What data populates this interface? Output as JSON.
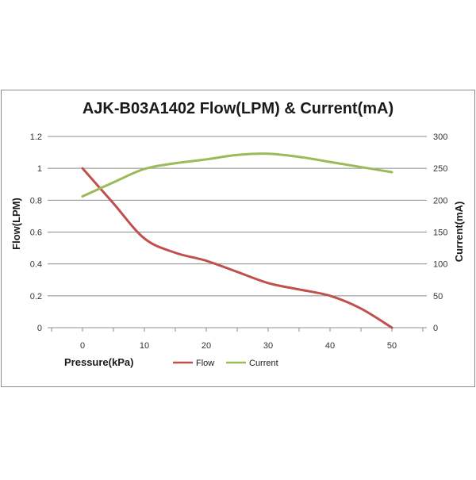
{
  "chart_data": {
    "type": "line",
    "title": "AJK-B03A1402 Flow(LPM) & Current(mA)",
    "xlabel": "Pressure(kPa)",
    "ylabel": "Flow(LPM)",
    "y2label": "Current(mA)",
    "x": [
      0,
      10,
      20,
      30,
      40,
      50
    ],
    "xlim": [
      -5,
      55
    ],
    "xticks": [
      "0",
      "10",
      "20",
      "30",
      "40",
      "50"
    ],
    "ylim": [
      0,
      1.2
    ],
    "yticks": [
      "0",
      "0.2",
      "0.4",
      "0.6",
      "0.8",
      "1",
      "1.2"
    ],
    "y2lim": [
      0,
      300
    ],
    "y2ticks": [
      "0",
      "50",
      "100",
      "150",
      "200",
      "250",
      "300"
    ],
    "grid": true,
    "legend": "bottom",
    "series": [
      {
        "name": "Flow",
        "axis": "left",
        "color": "#c0504d",
        "x": [
          0,
          5,
          10,
          15,
          20,
          25,
          30,
          35,
          40,
          45,
          50
        ],
        "values": [
          1.0,
          0.78,
          0.56,
          0.47,
          0.42,
          0.35,
          0.28,
          0.24,
          0.2,
          0.12,
          0.0
        ]
      },
      {
        "name": "Current",
        "axis": "right",
        "color": "#9bbb59",
        "x": [
          0,
          5,
          10,
          15,
          20,
          25,
          30,
          35,
          40,
          45,
          50
        ],
        "values": [
          206,
          228,
          249,
          258,
          264,
          271,
          273,
          268,
          260,
          252,
          244
        ]
      }
    ]
  }
}
